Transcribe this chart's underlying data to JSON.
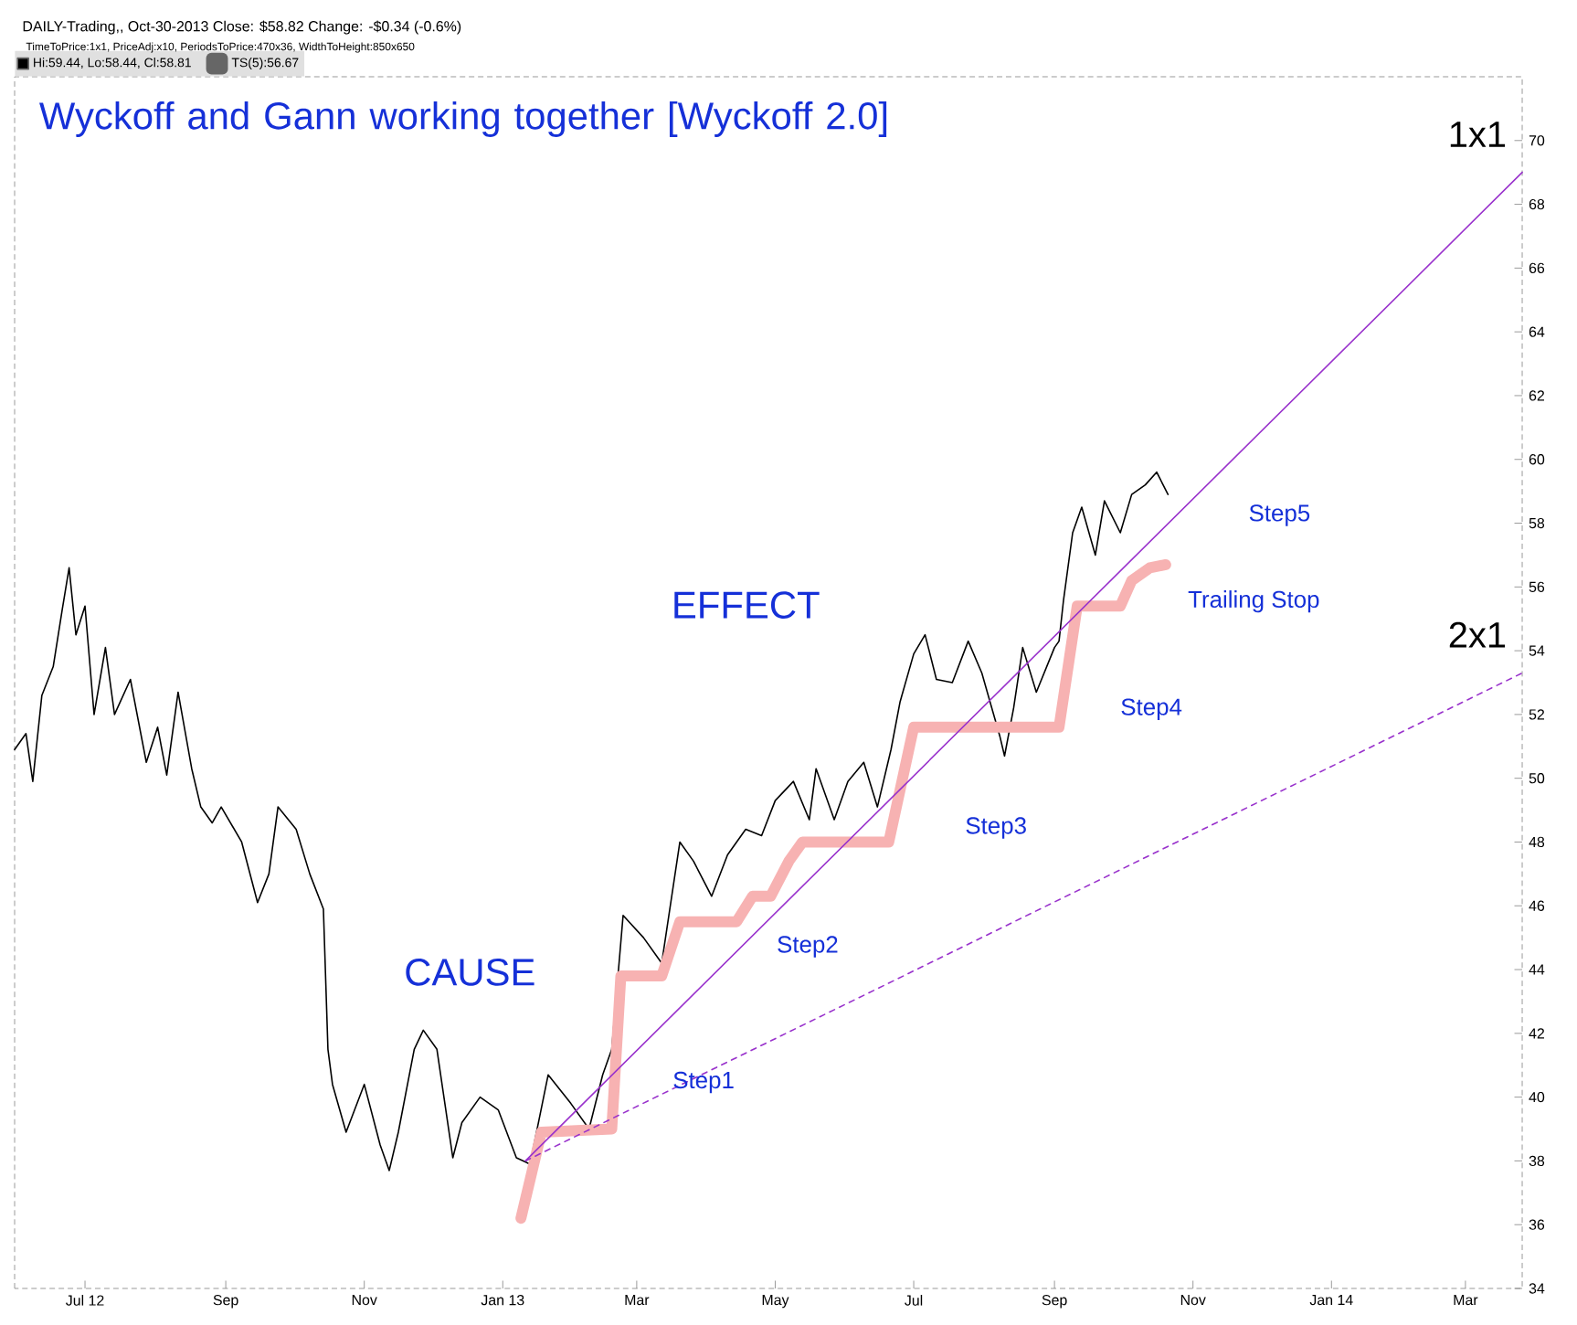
{
  "chart_data": {
    "type": "line",
    "title": "Wyckoff and Gann working together [Wyckoff 2.0]",
    "subtitle": "DAILY-Trading,, Oct-30-2013  Close: $58.82  Change: -$0.34  (-0.6%)",
    "annotations": [
      "TimeToPrice:1x1, PriceAdj:x10, PeriodsToPrice:470x36, WidthToHeight:850x650",
      "CAUSE",
      "EFFECT",
      "Step1",
      "Step2",
      "Step3",
      "Step4",
      "Step5",
      "Trailing Stop"
    ],
    "xlim": [
      "2012-05-31",
      "2014-03-26"
    ],
    "xticks": [
      {
        "value": "2012-07-01",
        "label": "Jul 12"
      },
      {
        "value": "2012-09-01",
        "label": "Sep"
      },
      {
        "value": "2012-11-01",
        "label": "Nov"
      },
      {
        "value": "2013-01-01",
        "label": "Jan 13"
      },
      {
        "value": "2013-03-01",
        "label": "Mar"
      },
      {
        "value": "2013-05-01",
        "label": "May"
      },
      {
        "value": "2013-07-01",
        "label": "Jul"
      },
      {
        "value": "2013-09-01",
        "label": "Sep"
      },
      {
        "value": "2013-11-01",
        "label": "Nov"
      },
      {
        "value": "2014-01-01",
        "label": "Jan 14"
      },
      {
        "value": "2014-03-01",
        "label": "Mar"
      }
    ],
    "ylim": [
      34,
      72
    ],
    "yticks": [
      34,
      36,
      38,
      40,
      42,
      44,
      46,
      48,
      50,
      52,
      54,
      56,
      58,
      60,
      62,
      64,
      66,
      68,
      70
    ],
    "legend": "top left",
    "series": [
      {
        "name": "Hi:59.44, Lo:58.44, Cl:58.81",
        "color": "#000000",
        "x": [
          "2012-05-31",
          "2012-06-05",
          "2012-06-08",
          "2012-06-12",
          "2012-06-17",
          "2012-06-21",
          "2012-06-24",
          "2012-06-27",
          "2012-07-01",
          "2012-07-05",
          "2012-07-10",
          "2012-07-14",
          "2012-07-21",
          "2012-07-28",
          "2012-08-02",
          "2012-08-06",
          "2012-08-11",
          "2012-08-17",
          "2012-08-21",
          "2012-08-26",
          "2012-08-30",
          "2012-09-08",
          "2012-09-15",
          "2012-09-20",
          "2012-09-24",
          "2012-10-02",
          "2012-10-08",
          "2012-10-14",
          "2012-10-16",
          "2012-10-18",
          "2012-10-24",
          "2012-11-01",
          "2012-11-08",
          "2012-11-12",
          "2012-11-16",
          "2012-11-23",
          "2012-11-27",
          "2012-12-03",
          "2012-12-10",
          "2012-12-14",
          "2012-12-22",
          "2012-12-30",
          "2013-01-07",
          "2013-01-13",
          "2013-01-21",
          "2013-01-31",
          "2013-02-08",
          "2013-02-14",
          "2013-02-18",
          "2013-02-23",
          "2013-03-04",
          "2013-03-12",
          "2013-03-20",
          "2013-03-26",
          "2013-04-03",
          "2013-04-10",
          "2013-04-18",
          "2013-04-25",
          "2013-05-01",
          "2013-05-09",
          "2013-05-16",
          "2013-05-19",
          "2013-05-27",
          "2013-06-02",
          "2013-06-09",
          "2013-06-15",
          "2013-06-21",
          "2013-06-25",
          "2013-07-01",
          "2013-07-06",
          "2013-07-11",
          "2013-07-18",
          "2013-07-25",
          "2013-07-31",
          "2013-08-08",
          "2013-08-10",
          "2013-08-14",
          "2013-08-18",
          "2013-08-24",
          "2013-09-01",
          "2013-09-03",
          "2013-09-05",
          "2013-09-09",
          "2013-09-13",
          "2013-09-19",
          "2013-09-23",
          "2013-09-30",
          "2013-10-05",
          "2013-10-11",
          "2013-10-16",
          "2013-10-21"
        ],
        "values": [
          50.9,
          51.4,
          49.9,
          52.6,
          53.5,
          55.3,
          56.6,
          54.5,
          55.4,
          52.0,
          54.1,
          52.0,
          53.1,
          50.5,
          51.6,
          50.1,
          52.7,
          50.3,
          49.1,
          48.6,
          49.1,
          48.0,
          46.1,
          47.0,
          49.1,
          48.4,
          47.0,
          45.9,
          41.5,
          40.4,
          38.9,
          40.4,
          38.5,
          37.7,
          38.9,
          41.5,
          42.1,
          41.5,
          38.1,
          39.2,
          40.0,
          39.6,
          38.1,
          37.9,
          40.7,
          39.8,
          39.0,
          40.7,
          41.5,
          45.7,
          45.0,
          44.2,
          48.0,
          47.4,
          46.3,
          47.6,
          48.4,
          48.2,
          49.3,
          49.9,
          48.7,
          50.3,
          48.7,
          49.9,
          50.5,
          49.1,
          50.9,
          52.4,
          53.9,
          54.5,
          53.1,
          53.0,
          54.3,
          53.3,
          51.3,
          50.7,
          52.2,
          54.1,
          52.7,
          54.1,
          54.3,
          55.6,
          57.7,
          58.5,
          57.0,
          58.7,
          57.7,
          58.9,
          59.2,
          59.6,
          58.9
        ]
      },
      {
        "name": "TS(5):56.67",
        "color": "#f7b2b2",
        "x": [
          "2013-01-09",
          "2013-01-18",
          "2013-02-18",
          "2013-02-22",
          "2013-03-12",
          "2013-03-20",
          "2013-04-14",
          "2013-04-21",
          "2013-04-29",
          "2013-05-07",
          "2013-05-13",
          "2013-06-20",
          "2013-07-01",
          "2013-09-03",
          "2013-09-11",
          "2013-09-30",
          "2013-10-05",
          "2013-10-13",
          "2013-10-20"
        ],
        "values": [
          36.2,
          38.9,
          39.0,
          43.8,
          43.8,
          45.5,
          45.5,
          46.3,
          46.3,
          47.4,
          48.0,
          48.0,
          51.6,
          51.6,
          55.4,
          55.4,
          56.2,
          56.6,
          56.7
        ]
      },
      {
        "name": "1x1",
        "color": "#9932cc",
        "line_style": "solid",
        "x": [
          "2013-01-11",
          "2014-03-26"
        ],
        "values": [
          38.0,
          69.0
        ]
      },
      {
        "name": "2x1",
        "color": "#9932cc",
        "line_style": "dashed",
        "x": [
          "2013-01-11",
          "2014-03-26"
        ],
        "values": [
          38.0,
          53.3
        ]
      }
    ]
  }
}
